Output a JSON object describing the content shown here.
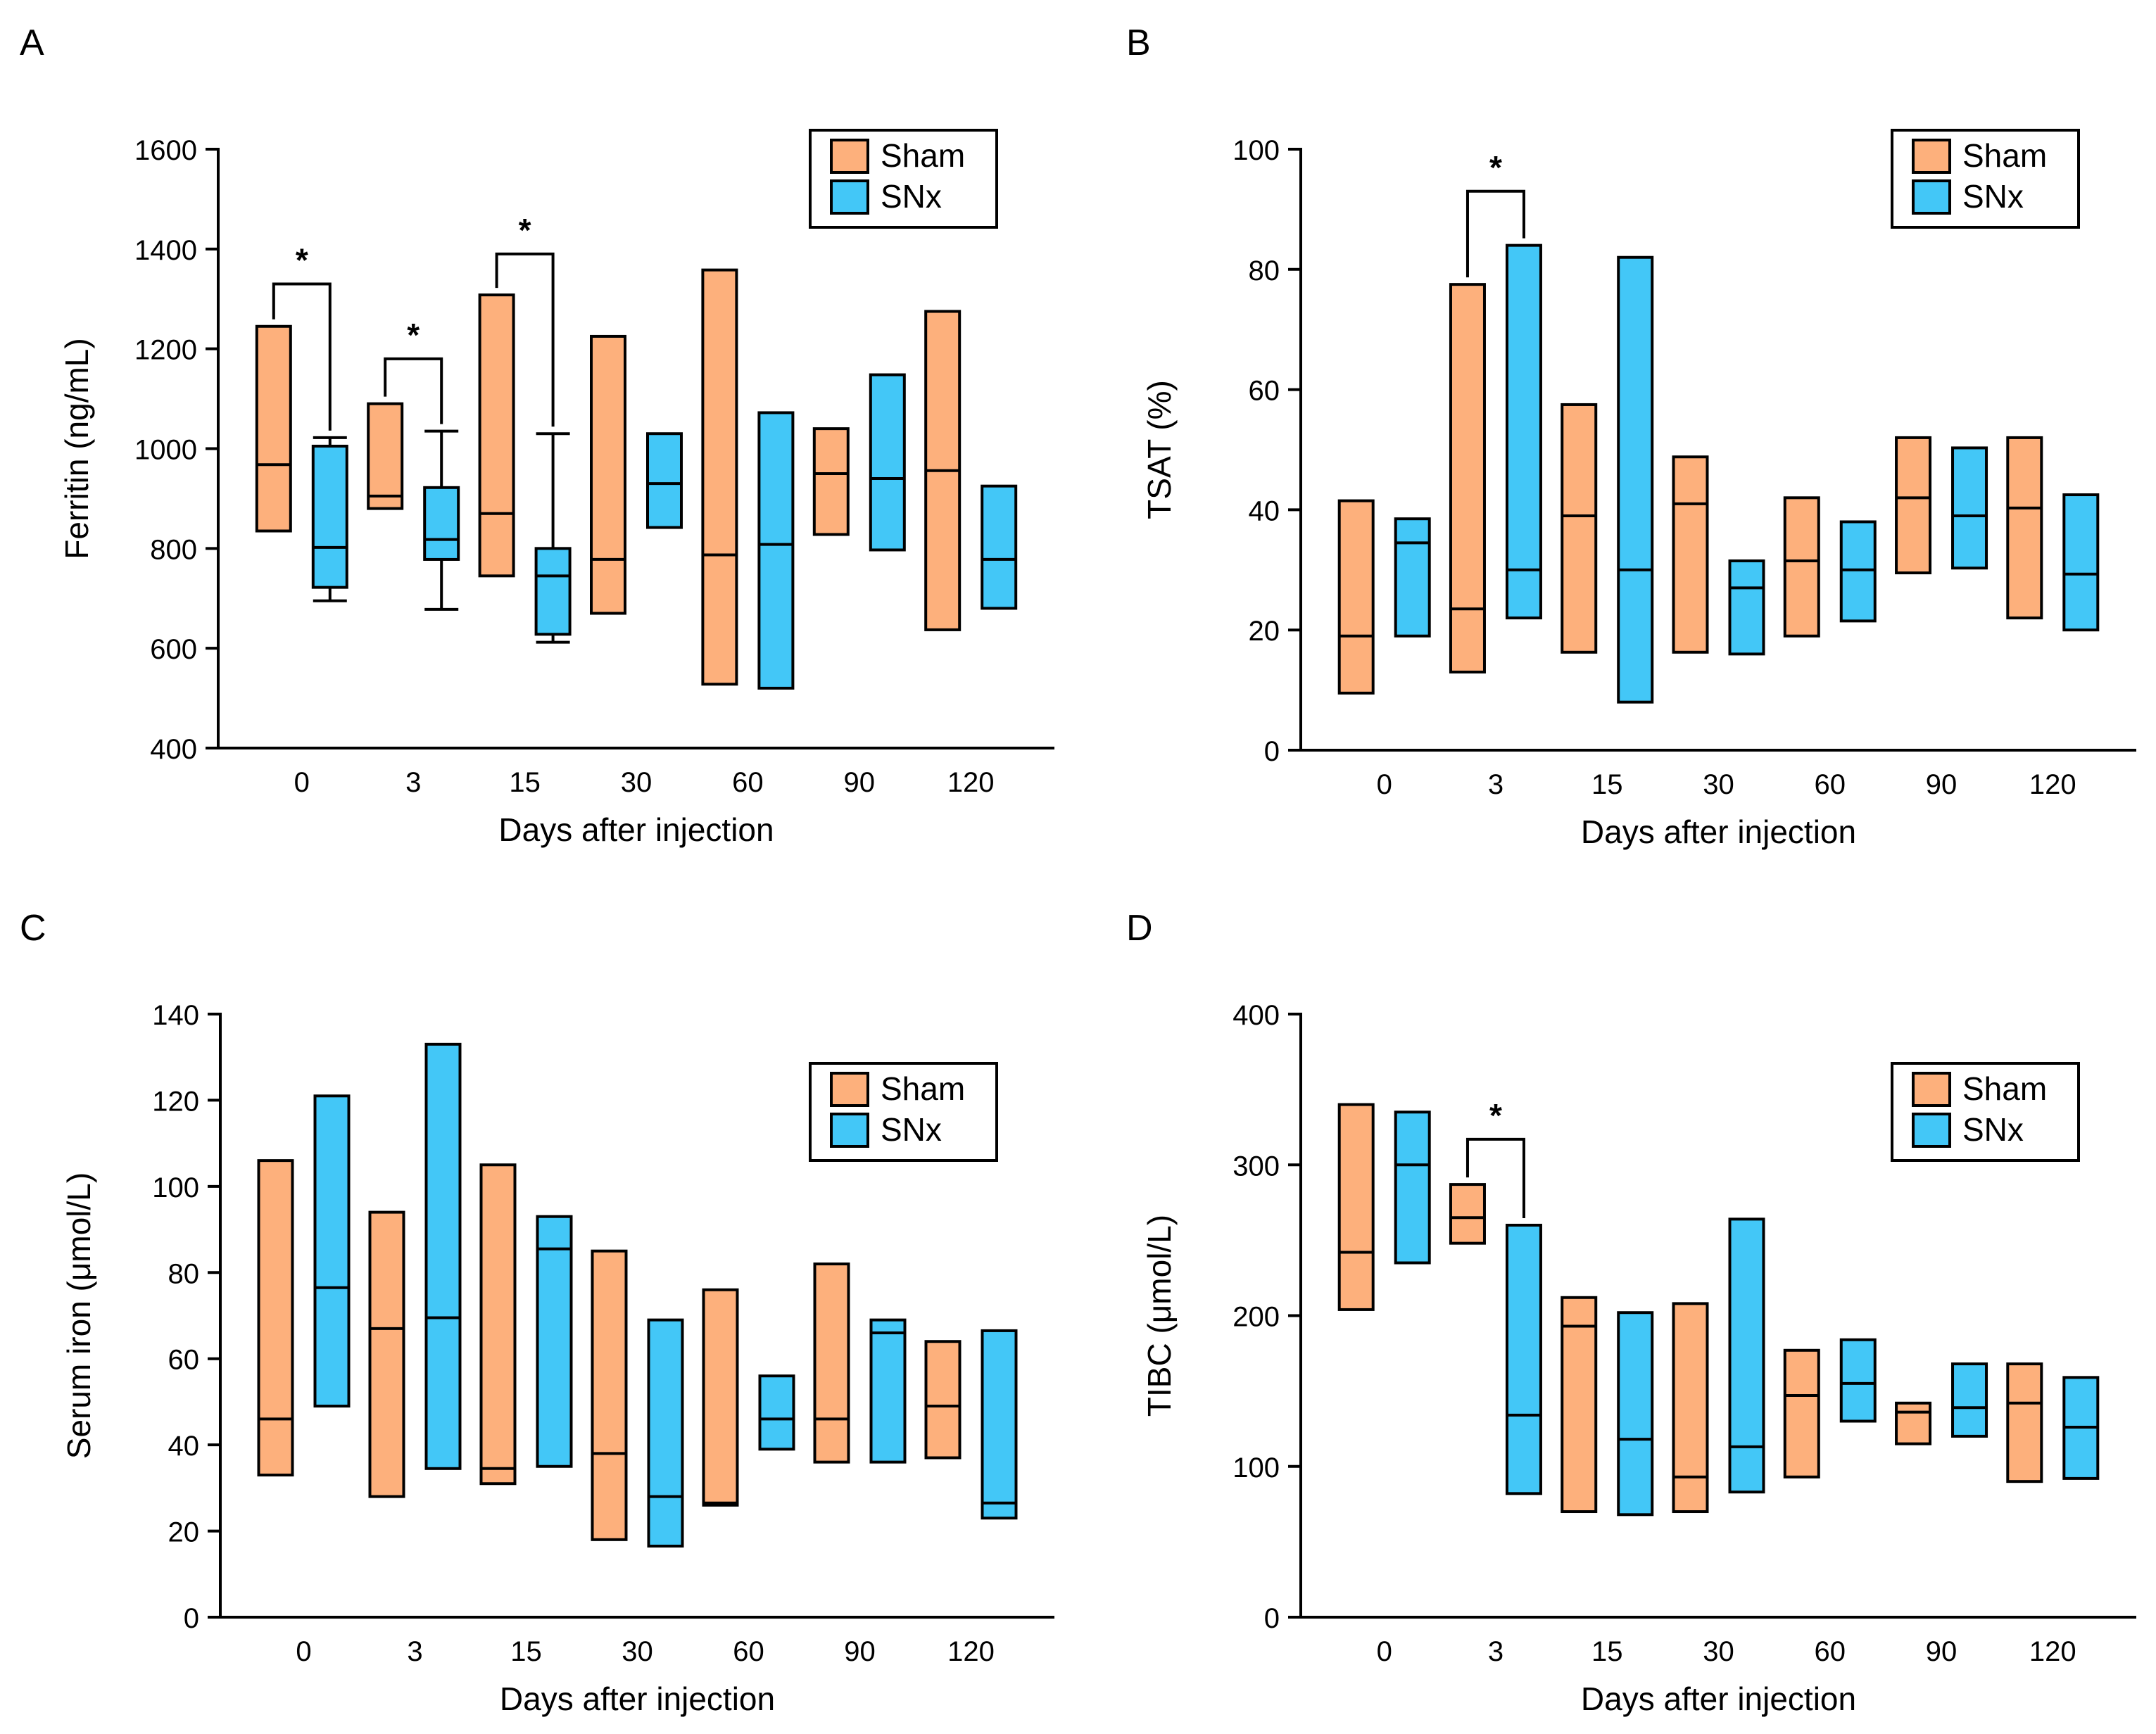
{
  "figure": {
    "x_label": "Days after injection",
    "legend": {
      "sham_label": "Sham",
      "snx_label": "SNx",
      "sham_color": "#FDB07C",
      "snx_color": "#43C7F7"
    }
  },
  "chart_data": [
    {
      "panel": "A",
      "type": "box",
      "xlabel": "Days after injection",
      "ylabel": "Ferritin (ng/mL)",
      "ylim": [
        400,
        1600
      ],
      "yticks": [
        400,
        600,
        800,
        1000,
        1200,
        1400,
        1600
      ],
      "categories": [
        "0",
        "3",
        "15",
        "30",
        "60",
        "90",
        "120"
      ],
      "legend_position": "top-right",
      "series": [
        {
          "name": "Sham",
          "boxes": [
            {
              "q1": 835,
              "median": 968,
              "q3": 1245
            },
            {
              "q1": 880,
              "median": 905,
              "q3": 1090
            },
            {
              "q1": 745,
              "median": 870,
              "q3": 1308
            },
            {
              "q1": 670,
              "median": 778,
              "q3": 1225
            },
            {
              "q1": 528,
              "median": 787,
              "q3": 1358
            },
            {
              "q1": 828,
              "median": 950,
              "q3": 1040
            },
            {
              "q1": 637,
              "median": 956,
              "q3": 1275
            }
          ]
        },
        {
          "name": "SNx",
          "boxes": [
            {
              "q1": 722,
              "median": 802,
              "q3": 1005,
              "whisker_low": 695,
              "whisker_high": 1022
            },
            {
              "q1": 778,
              "median": 818,
              "q3": 922,
              "whisker_low": 678,
              "whisker_high": 1035
            },
            {
              "q1": 628,
              "median": 745,
              "q3": 800,
              "whisker_low": 612,
              "whisker_high": 1030
            },
            {
              "q1": 842,
              "median": 930,
              "q3": 1030
            },
            {
              "q1": 520,
              "median": 808,
              "q3": 1072
            },
            {
              "q1": 797,
              "median": 940,
              "q3": 1148
            },
            {
              "q1": 680,
              "median": 778,
              "q3": 925
            }
          ]
        }
      ],
      "significance": [
        {
          "category": "0",
          "label": "*",
          "y_data": 1330
        },
        {
          "category": "3",
          "label": "*",
          "y_data": 1180
        },
        {
          "category": "15",
          "label": "*",
          "y_data": 1390
        }
      ]
    },
    {
      "panel": "B",
      "type": "box",
      "xlabel": "Days after injection",
      "ylabel": "TSAT (%)",
      "ylim": [
        0,
        100
      ],
      "yticks": [
        0,
        20,
        40,
        60,
        80,
        100
      ],
      "categories": [
        "0",
        "3",
        "15",
        "30",
        "60",
        "90",
        "120"
      ],
      "legend_position": "top-right",
      "series": [
        {
          "name": "Sham",
          "boxes": [
            {
              "q1": 9.5,
              "median": 19,
              "q3": 41.5
            },
            {
              "q1": 13,
              "median": 23.5,
              "q3": 77.5
            },
            {
              "q1": 16.3,
              "median": 39,
              "q3": 57.5
            },
            {
              "q1": 16.3,
              "median": 41,
              "q3": 48.8
            },
            {
              "q1": 19,
              "median": 31.5,
              "q3": 42
            },
            {
              "q1": 29.5,
              "median": 42,
              "q3": 52
            },
            {
              "q1": 22,
              "median": 40.3,
              "q3": 52
            }
          ]
        },
        {
          "name": "SNx",
          "boxes": [
            {
              "q1": 19,
              "median": 34.5,
              "q3": 38.5
            },
            {
              "q1": 22,
              "median": 30,
              "q3": 84
            },
            {
              "q1": 8,
              "median": 30,
              "q3": 82
            },
            {
              "q1": 16,
              "median": 27,
              "q3": 31.5
            },
            {
              "q1": 21.5,
              "median": 30,
              "q3": 38
            },
            {
              "q1": 30.3,
              "median": 39,
              "q3": 50.3
            },
            {
              "q1": 20,
              "median": 29.3,
              "q3": 42.5
            }
          ]
        }
      ],
      "significance": [
        {
          "category": "3",
          "label": "*",
          "y_data": 93
        }
      ]
    },
    {
      "panel": "C",
      "type": "box",
      "xlabel": "Days after injection",
      "ylabel": "Serum iron (μmol/L)",
      "ylim": [
        0,
        140
      ],
      "yticks": [
        0,
        20,
        40,
        60,
        80,
        100,
        120,
        140
      ],
      "categories": [
        "0",
        "3",
        "15",
        "30",
        "60",
        "90",
        "120"
      ],
      "legend_position": "top-right",
      "series": [
        {
          "name": "Sham",
          "boxes": [
            {
              "q1": 33,
              "median": 46,
              "q3": 106
            },
            {
              "q1": 28,
              "median": 67,
              "q3": 94
            },
            {
              "q1": 31,
              "median": 34.5,
              "q3": 105
            },
            {
              "q1": 18,
              "median": 38,
              "q3": 85
            },
            {
              "q1": 26,
              "median": 26.5,
              "q3": 76
            },
            {
              "q1": 36,
              "median": 46,
              "q3": 82
            },
            {
              "q1": 37,
              "median": 49,
              "q3": 64
            }
          ]
        },
        {
          "name": "SNx",
          "boxes": [
            {
              "q1": 49,
              "median": 76.5,
              "q3": 121
            },
            {
              "q1": 34.5,
              "median": 69.5,
              "q3": 133
            },
            {
              "q1": 35,
              "median": 85.5,
              "q3": 93
            },
            {
              "q1": 16.5,
              "median": 28,
              "q3": 69
            },
            {
              "q1": 39,
              "median": 46,
              "q3": 56
            },
            {
              "q1": 36,
              "median": 66,
              "q3": 69
            },
            {
              "q1": 23,
              "median": 26.5,
              "q3": 66.5
            }
          ]
        }
      ],
      "significance": []
    },
    {
      "panel": "D",
      "type": "box",
      "xlabel": "Days after injection",
      "ylabel": "TIBC (μmol/L)",
      "ylim": [
        0,
        400
      ],
      "yticks": [
        0,
        100,
        200,
        300,
        400
      ],
      "categories": [
        "0",
        "3",
        "15",
        "30",
        "60",
        "90",
        "120"
      ],
      "legend_position": "top-right",
      "series": [
        {
          "name": "Sham",
          "boxes": [
            {
              "q1": 204,
              "median": 242,
              "q3": 340
            },
            {
              "q1": 248,
              "median": 265,
              "q3": 287
            },
            {
              "q1": 70,
              "median": 193,
              "q3": 212
            },
            {
              "q1": 70,
              "median": 93,
              "q3": 208
            },
            {
              "q1": 93,
              "median": 147,
              "q3": 177
            },
            {
              "q1": 115,
              "median": 136,
              "q3": 142
            },
            {
              "q1": 90,
              "median": 142,
              "q3": 168
            }
          ]
        },
        {
          "name": "SNx",
          "boxes": [
            {
              "q1": 235,
              "median": 300,
              "q3": 335
            },
            {
              "q1": 82,
              "median": 134,
              "q3": 260
            },
            {
              "q1": 68,
              "median": 118,
              "q3": 202
            },
            {
              "q1": 83,
              "median": 113,
              "q3": 264
            },
            {
              "q1": 130,
              "median": 155,
              "q3": 184
            },
            {
              "q1": 120,
              "median": 139,
              "q3": 168
            },
            {
              "q1": 92,
              "median": 126,
              "q3": 159
            }
          ]
        }
      ],
      "significance": [
        {
          "category": "3",
          "label": "*",
          "y_data": 317
        }
      ]
    }
  ]
}
